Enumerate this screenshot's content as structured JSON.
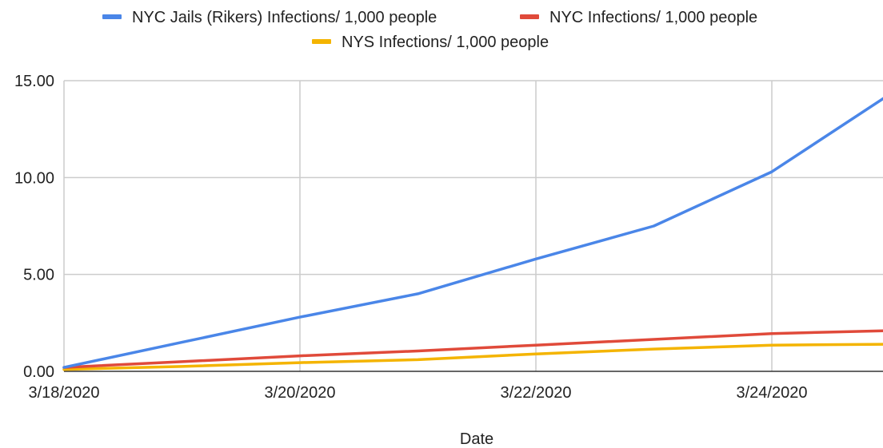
{
  "chart_data": {
    "type": "line",
    "x": [
      "3/18/2020",
      "3/19/2020",
      "3/20/2020",
      "3/21/2020",
      "3/22/2020",
      "3/23/2020",
      "3/24/2020",
      "3/25/2020"
    ],
    "xticks": [
      "3/18/2020",
      "3/20/2020",
      "3/22/2020",
      "3/24/2020"
    ],
    "xlabel": "Date",
    "ylabel": "",
    "ylim": [
      0,
      15
    ],
    "yticks": [
      "0.00",
      "5.00",
      "10.00",
      "15.00"
    ],
    "grid": true,
    "legend": "top",
    "series": [
      {
        "name": "NYC Jails (Rikers) Infections/ 1,000 people",
        "color": "#4a86e8",
        "values": [
          0.2,
          1.5,
          2.8,
          4.0,
          5.8,
          7.5,
          10.3,
          14.3
        ]
      },
      {
        "name": "NYC Infections/ 1,000 people",
        "color": "#e04a3a",
        "values": [
          0.2,
          0.5,
          0.8,
          1.05,
          1.35,
          1.65,
          1.95,
          2.1
        ]
      },
      {
        "name": "NYS Infections/ 1,000 people",
        "color": "#f4b400",
        "values": [
          0.1,
          0.25,
          0.45,
          0.6,
          0.9,
          1.15,
          1.35,
          1.4
        ]
      }
    ]
  }
}
